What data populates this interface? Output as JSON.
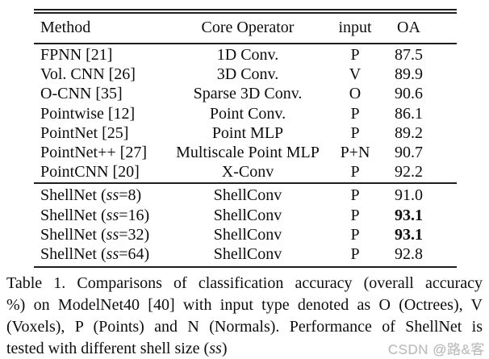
{
  "colors": {
    "background": "#ffffff",
    "text": "#0d0d0d",
    "rule": "#1e1e1e",
    "watermark": "#bcbcbc"
  },
  "table": {
    "headers": {
      "method": "Method",
      "operator": "Core Operator",
      "input": "input",
      "oa": "OA"
    },
    "group1": [
      {
        "method": "FPNN [21]",
        "operator": "1D Conv.",
        "input": "P",
        "oa": "87.5"
      },
      {
        "method": "Vol. CNN [26]",
        "operator": "3D Conv.",
        "input": "V",
        "oa": "89.9"
      },
      {
        "method": "O-CNN [35]",
        "operator": "Sparse 3D Conv.",
        "input": "O",
        "oa": "90.6"
      },
      {
        "method": "Pointwise [12]",
        "operator": "Point Conv.",
        "input": "P",
        "oa": "86.1"
      },
      {
        "method": "PointNet [25]",
        "operator": "Point MLP",
        "input": "P",
        "oa": "89.2"
      },
      {
        "method": "PointNet++ [27]",
        "operator": "Multiscale Point MLP",
        "input": "P+N",
        "oa": "90.7"
      },
      {
        "method": "PointCNN [20]",
        "operator": "X-Conv",
        "input": "P",
        "oa": "92.2"
      }
    ],
    "group2": [
      {
        "method_pre": "ShellNet (",
        "method_it": "ss",
        "method_post": "=8)",
        "operator": "ShellConv",
        "input": "P",
        "oa": "91.0",
        "oa_bold": false
      },
      {
        "method_pre": "ShellNet (",
        "method_it": "ss",
        "method_post": "=16)",
        "operator": "ShellConv",
        "input": "P",
        "oa": "93.1",
        "oa_bold": true
      },
      {
        "method_pre": "ShellNet (",
        "method_it": "ss",
        "method_post": "=32)",
        "operator": "ShellConv",
        "input": "P",
        "oa": "93.1",
        "oa_bold": true
      },
      {
        "method_pre": "ShellNet (",
        "method_it": "ss",
        "method_post": "=64)",
        "operator": "ShellConv",
        "input": "P",
        "oa": "92.8",
        "oa_bold": false
      }
    ]
  },
  "caption": {
    "line1": "Table 1. Comparisons of classification accuracy (overall accuracy",
    "line2": "%) on ModelNet40 [40] with input type denoted as O (Octrees), V",
    "line3": "(Voxels), P (Points) and N (Normals). Performance of ShellNet is",
    "line4_pre": "tested with different shell size (",
    "line4_it": "ss",
    "line4_post": ")"
  },
  "watermark": "CSDN @路&客"
}
